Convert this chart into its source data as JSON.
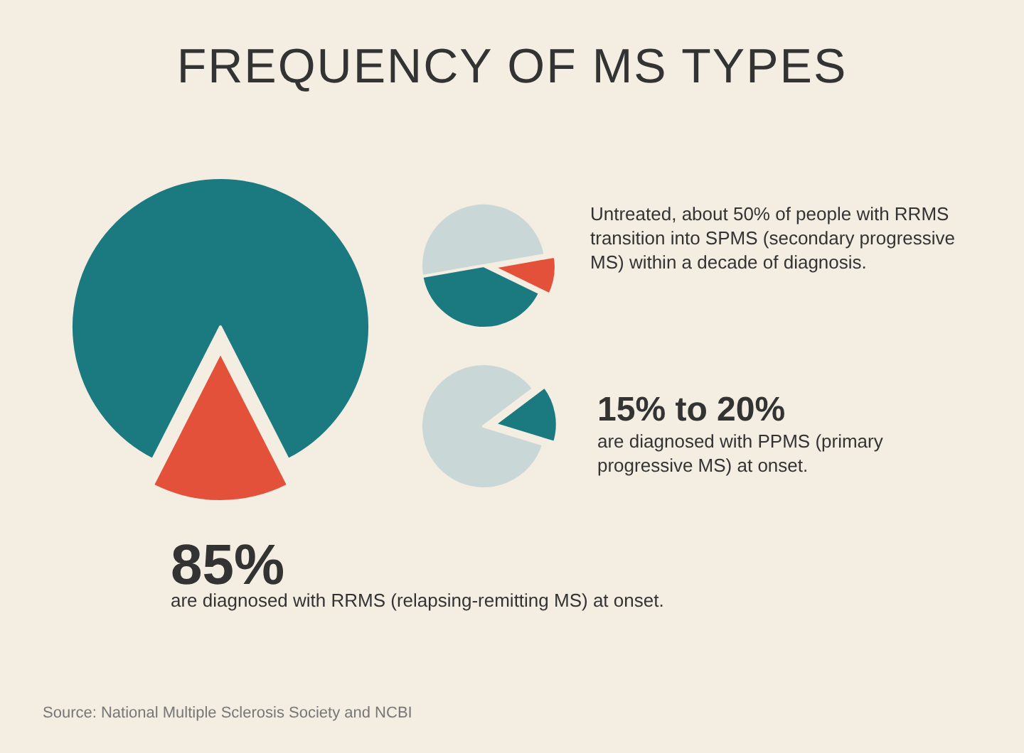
{
  "chart_data": [
    {
      "type": "pie",
      "title": "FREQUENCY OF MS TYPES",
      "categories": [
        null,
        null
      ],
      "values": [
        85,
        15
      ],
      "colors": [
        "#1b7a80",
        "#e4513a"
      ],
      "annotations": [
        "85%",
        "are diagnosed with RRMS (relapsing-remitting MS) at onset.",
        "Source: National Multiple Sclerosis Society and NCBI"
      ]
    },
    {
      "type": "pie",
      "categories": [
        null,
        null,
        null
      ],
      "values": [
        50,
        10,
        40
      ],
      "colors": [
        "#c9d8d6",
        "#e4513a",
        "#1b7a80"
      ],
      "annotations": [
        "Untreated, about 50% of people with RRMS transition into SPMS (secondary progressive MS) within a decade of diagnosis."
      ]
    },
    {
      "type": "pie",
      "categories": [
        null,
        null
      ],
      "values": [
        85,
        15
      ],
      "colors": [
        "#c9d8d6",
        "#1b7a80"
      ],
      "annotations": [
        "15% to 20%",
        "are diagnosed with PPMS (primary progressive MS) at onset."
      ]
    }
  ]
}
